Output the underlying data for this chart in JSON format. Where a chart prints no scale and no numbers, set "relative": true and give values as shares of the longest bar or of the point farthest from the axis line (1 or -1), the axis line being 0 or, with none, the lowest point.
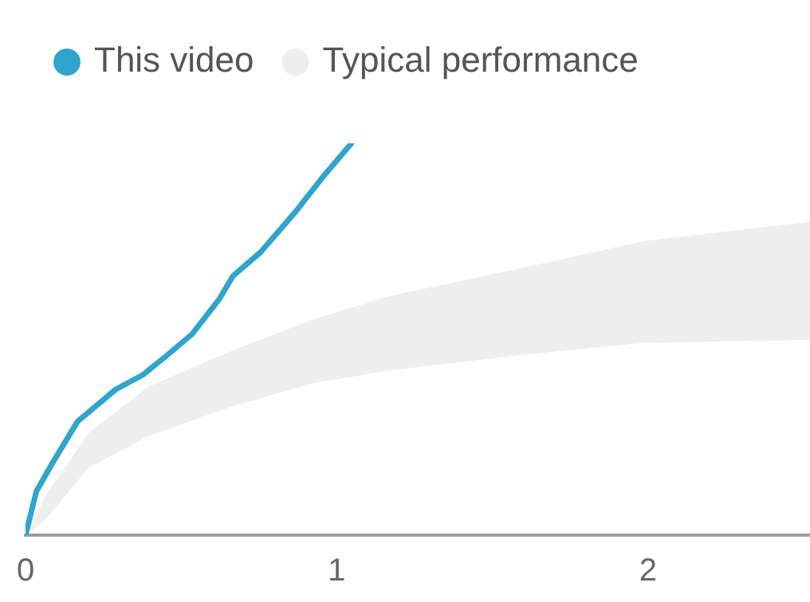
{
  "chart_data": {
    "type": "line",
    "relative": true,
    "legend": "top left",
    "marker": "none",
    "xlim": [
      0,
      2.52
    ],
    "xticks": [
      0,
      1,
      2
    ],
    "series": [
      {
        "name": "This video",
        "color": "#2fa4cc",
        "x": [
          0,
          0.035,
          0.088,
          0.167,
          0.29,
          0.377,
          0.447,
          0.535,
          0.623,
          0.667,
          0.755,
          0.868,
          0.956,
          1.047
        ],
        "values": [
          0,
          0.112,
          0.186,
          0.29,
          0.372,
          0.409,
          0.454,
          0.513,
          0.603,
          0.662,
          0.722,
          0.826,
          0.915,
          1.0
        ]
      },
      {
        "name": "Typical performance",
        "type": "area",
        "color": "#eeeeee",
        "x": [
          0,
          0.062,
          0.202,
          0.395,
          0.658,
          0.921,
          1.168,
          1.606,
          1.99,
          2.52
        ],
        "values": [
          null,
          null,
          null,
          null,
          null,
          null,
          null,
          null,
          null,
          null
        ],
        "lower": [
          0,
          0.037,
          0.171,
          0.253,
          0.327,
          0.387,
          0.42,
          0.461,
          0.491,
          0.498
        ],
        "upper": [
          0,
          0.097,
          0.26,
          0.379,
          0.469,
          0.55,
          0.61,
          0.684,
          0.751,
          0.8
        ]
      }
    ]
  }
}
